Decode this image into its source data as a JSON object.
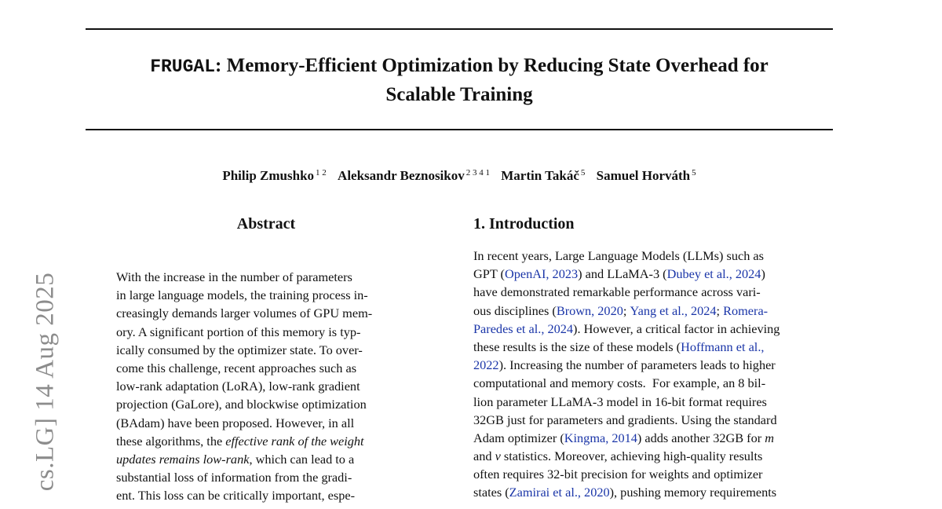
{
  "paper": {
    "title_mono": "FRUGAL",
    "title_rest": ": Memory-Efficient Optimization by Reducing State Overhead for",
    "title_line2": "Scalable Training",
    "authors": [
      {
        "name": "Philip Zmushko",
        "affil": "1 2"
      },
      {
        "name": "Aleksandr Beznosikov",
        "affil": "2 3 4 1"
      },
      {
        "name": "Martin Takáč",
        "affil": "5"
      },
      {
        "name": "Samuel Horváth",
        "affil": "5"
      }
    ],
    "arxiv_stamp": "cs.LG]  14 Aug 2025"
  },
  "abstract": {
    "heading": "Abstract",
    "lines": [
      "With the increase in the number of parameters",
      "in large language models, the training process in-",
      "creasingly demands larger volumes of GPU mem-",
      "ory. A significant portion of this memory is typ-",
      "ically consumed by the optimizer state. To over-",
      "come this challenge, recent approaches such as",
      "low-rank adaptation (LoRA), low-rank gradient",
      "projection (GaLore), and blockwise optimization",
      "(BAdam) have been proposed. However, in all",
      "these algorithms, the ",
      "effective rank of the weight",
      "updates remains low-rank",
      ", which can lead to a",
      "substantial loss of information from the gradi-",
      "ent. This loss can be critically important, espe-"
    ]
  },
  "intro": {
    "heading": "1. Introduction",
    "t": {
      "l1": "In recent years, Large Language Models (LLMs) such as",
      "l2a": "GPT (",
      "c_openai": "OpenAI, 2023",
      "l2b": ") and LLaMA-3 (",
      "c_dubey": "Dubey et al., 2024",
      "l2c": ")",
      "l3": "have demonstrated remarkable performance across vari-",
      "l4a": "ous disciplines (",
      "c_brown": "Brown, 2020",
      "l4b": "; ",
      "c_yang": "Yang et al., 2024",
      "l4c": "; ",
      "c_romera1": "Romera-",
      "c_romera2": "Paredes et al., 2024",
      "l5b": "). However, a critical factor in achieving",
      "l6a": "these results is the size of these models (",
      "c_hoff1": "Hoffmann et al.,",
      "c_hoff2": "2022",
      "l7b": "). Increasing the number of parameters leads to higher",
      "l8": "computational and memory costs.  For example, an 8 bil-",
      "l9": "lion parameter LLaMA-3 model in 16-bit format requires",
      "l10": "32GB just for parameters and gradients. Using the standard",
      "l11a": "Adam optimizer (",
      "c_kingma": "Kingma, 2014",
      "l11b": ") adds another 32GB for ",
      "m": "m",
      "l12a": "and ",
      "v": "v",
      "l12b": " statistics. Moreover, achieving high-quality results",
      "l13": "often requires 32-bit precision for weights and optimizer",
      "l14a": "states (",
      "c_zamirai": "Zamirai et al., 2020",
      "l14b": "), pushing memory requirements"
    }
  },
  "colors": {
    "citation": "#1a35a8",
    "stamp": "#8c8c8c"
  }
}
